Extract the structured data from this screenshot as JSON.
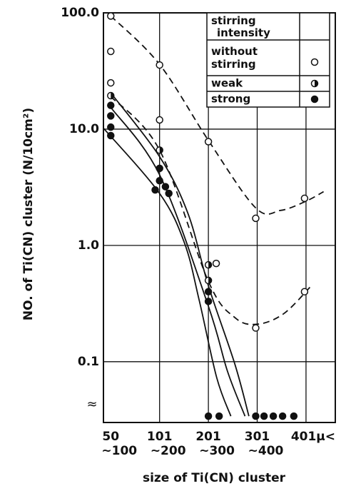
{
  "chart_data": {
    "type": "scatter",
    "y_label": "NO. of Ti(CN) cluster (N/10cm²)",
    "x_label": "size of Ti(CN) cluster",
    "log_y": true,
    "grid": true,
    "ylim": [
      0.03,
      100
    ],
    "yticks": [
      {
        "value": 100,
        "label": "100.0"
      },
      {
        "value": 10,
        "label": "10.0"
      },
      {
        "value": 1,
        "label": "1.0"
      },
      {
        "value": 0.1,
        "label": "0.1"
      }
    ],
    "axis_break_label": "≈",
    "xlim": [
      -0.15,
      4.6
    ],
    "xticks": [
      {
        "value": 0,
        "label": "50"
      },
      {
        "value": 1,
        "label": "101"
      },
      {
        "value": 2,
        "label": "201"
      },
      {
        "value": 3,
        "label": "301"
      },
      {
        "value": 4,
        "label": "401μ<"
      }
    ],
    "xtick_sublabels": [
      "~100",
      "~200",
      "~300",
      "~400"
    ],
    "legend_title": "stirring intensity",
    "legend": "upper right",
    "series": [
      {
        "name": "without stirring",
        "marker": "open",
        "color": "#111111",
        "x": [
          0,
          0,
          0,
          1,
          1,
          2,
          2.16,
          2.97,
          2.97,
          3.97,
          3.97
        ],
        "values": [
          94,
          46.6,
          25,
          35.6,
          12,
          7.8,
          0.7,
          1.71,
          0.195,
          2.54,
          0.4
        ]
      },
      {
        "name": "weak",
        "marker": "half",
        "color": "#111111",
        "x": [
          0,
          1,
          2,
          2
        ],
        "values": [
          19.4,
          6.6,
          0.68,
          0.5
        ]
      },
      {
        "name": "strong",
        "marker": "filled",
        "color": "#111111",
        "x": [
          0,
          0,
          0,
          0,
          1,
          1,
          1.12,
          1.19,
          0.91,
          2,
          2,
          2,
          2.22,
          2.97,
          3.14,
          3.33,
          3.52,
          3.75
        ],
        "values": [
          16,
          13,
          10.4,
          8.8,
          4.6,
          3.6,
          3.2,
          2.8,
          3.0,
          0.4,
          0.33,
          0.034,
          0.034,
          0.034,
          0.034,
          0.034,
          0.034,
          0.034
        ]
      }
    ],
    "curves": [
      {
        "style": "dashed",
        "x": [
          0,
          1,
          2,
          2.97,
          3.48,
          4,
          4.36
        ],
        "values": [
          94,
          36,
          8,
          2.1,
          2.0,
          2.4,
          2.9
        ]
      },
      {
        "style": "dashed",
        "x": [
          0,
          1,
          2,
          2.54,
          3,
          3.55,
          4.13
        ],
        "values": [
          19.1,
          6.6,
          0.49,
          0.24,
          0.21,
          0.26,
          0.46
        ]
      },
      {
        "style": "solid",
        "x": [
          0,
          1,
          1.58,
          2,
          2.54,
          2.83
        ],
        "values": [
          20.5,
          5.8,
          1.89,
          0.45,
          0.096,
          0.034
        ]
      },
      {
        "style": "solid",
        "x": [
          0,
          1,
          2,
          2.39,
          2.75
        ],
        "values": [
          15.4,
          4.05,
          0.3,
          0.083,
          0.034
        ]
      },
      {
        "style": "solid",
        "x": [
          -0.15,
          1,
          1.51,
          1.81,
          2.17,
          2.46
        ],
        "values": [
          10.2,
          2.8,
          1.05,
          0.34,
          0.073,
          0.034
        ]
      }
    ]
  }
}
